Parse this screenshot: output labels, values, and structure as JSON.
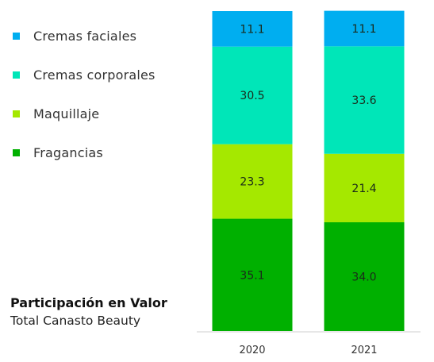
{
  "legend": [
    {
      "label": "Cremas faciales",
      "color": "#00aef0"
    },
    {
      "label": "Cremas corporales",
      "color": "#00e6b8"
    },
    {
      "label": "Maquillaje",
      "color": "#a5e800"
    },
    {
      "label": "Fragancias",
      "color": "#00b000"
    }
  ],
  "caption": {
    "title": "Participación en Valor",
    "subtitle": "Total Canasto Beauty"
  },
  "chart_data": {
    "type": "bar",
    "stacked": true,
    "categories": [
      "2020",
      "2021"
    ],
    "series": [
      {
        "name": "Fragancias",
        "values": [
          35.1,
          34.0
        ],
        "color": "#00b000"
      },
      {
        "name": "Maquillaje",
        "values": [
          23.3,
          21.4
        ],
        "color": "#a5e800"
      },
      {
        "name": "Cremas corporales",
        "values": [
          30.5,
          33.6
        ],
        "color": "#00e6b8"
      },
      {
        "name": "Cremas faciales",
        "values": [
          11.1,
          11.1
        ],
        "color": "#00aef0"
      }
    ],
    "ylim": [
      0,
      100
    ],
    "grid": false,
    "legend_position": "left"
  }
}
